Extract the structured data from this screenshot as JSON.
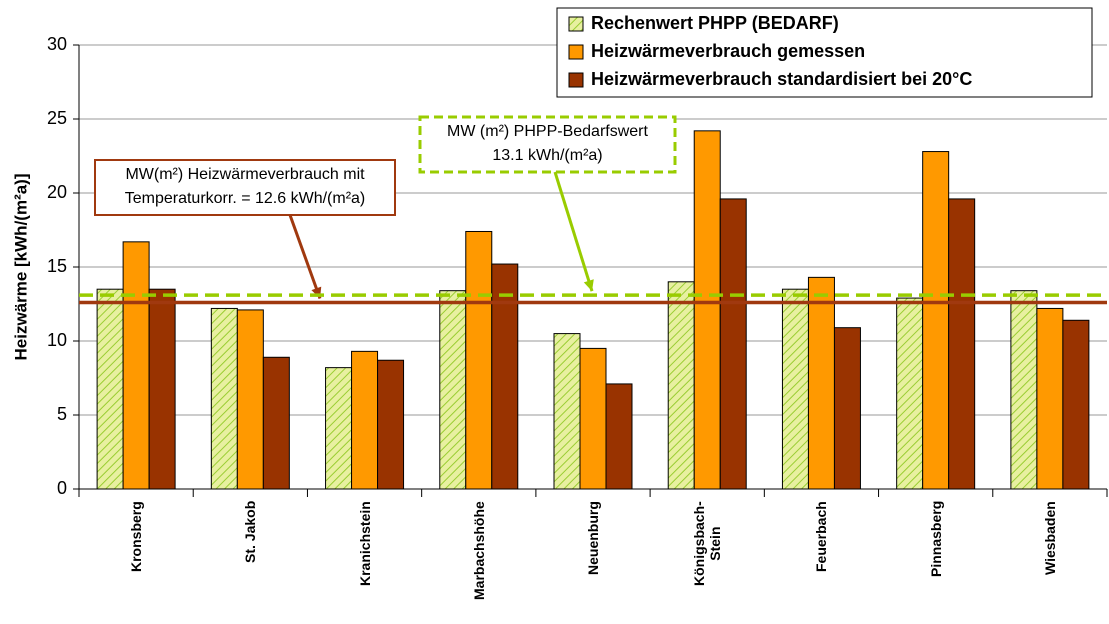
{
  "chart_data": {
    "type": "bar",
    "ylabel": "Heizwärme [kWh/(m²a)]",
    "categories": [
      "Kronsberg",
      "St. Jakob",
      "Kranichstein",
      "Marbachshöhe",
      "Neuenburg",
      "Königsbach-\nStein",
      "Feuerbach",
      "Pinnasberg",
      "Wiesbaden"
    ],
    "series": [
      {
        "name": "Rechenwert PHPP (BEDARF)",
        "color": "#e8f0a0",
        "hatch": "#9acd32",
        "values": [
          13.5,
          12.2,
          8.2,
          13.4,
          10.5,
          14.0,
          13.5,
          12.9,
          13.4
        ]
      },
      {
        "name": "Heizwärmeverbrauch gemessen",
        "color": "#ff9900",
        "values": [
          16.7,
          12.1,
          9.3,
          17.4,
          9.5,
          24.2,
          14.3,
          22.8,
          12.2
        ]
      },
      {
        "name": "Heizwärmeverbrauch standardisiert bei 20°C",
        "color": "#993300",
        "values": [
          13.5,
          8.9,
          8.7,
          15.2,
          7.1,
          19.6,
          10.9,
          19.6,
          11.4
        ]
      }
    ],
    "ylim": [
      0,
      30
    ],
    "yticks": [
      0,
      5,
      10,
      15,
      20,
      25,
      30
    ],
    "grid": true,
    "legend": "top-right",
    "annotations": [
      {
        "lines": [
          "MW(m²) Heizwärmeverbrauch mit",
          "Temperaturkorr. = 12.6 kWh/(m²a)"
        ],
        "value": 12.6,
        "color": "#a0390f",
        "dashed": false
      },
      {
        "lines": [
          "MW (m²) PHPP-Bedarfswert",
          "13.1 kWh/(m²a)"
        ],
        "value": 13.1,
        "color": "#99cc00",
        "dashed": true
      }
    ]
  }
}
